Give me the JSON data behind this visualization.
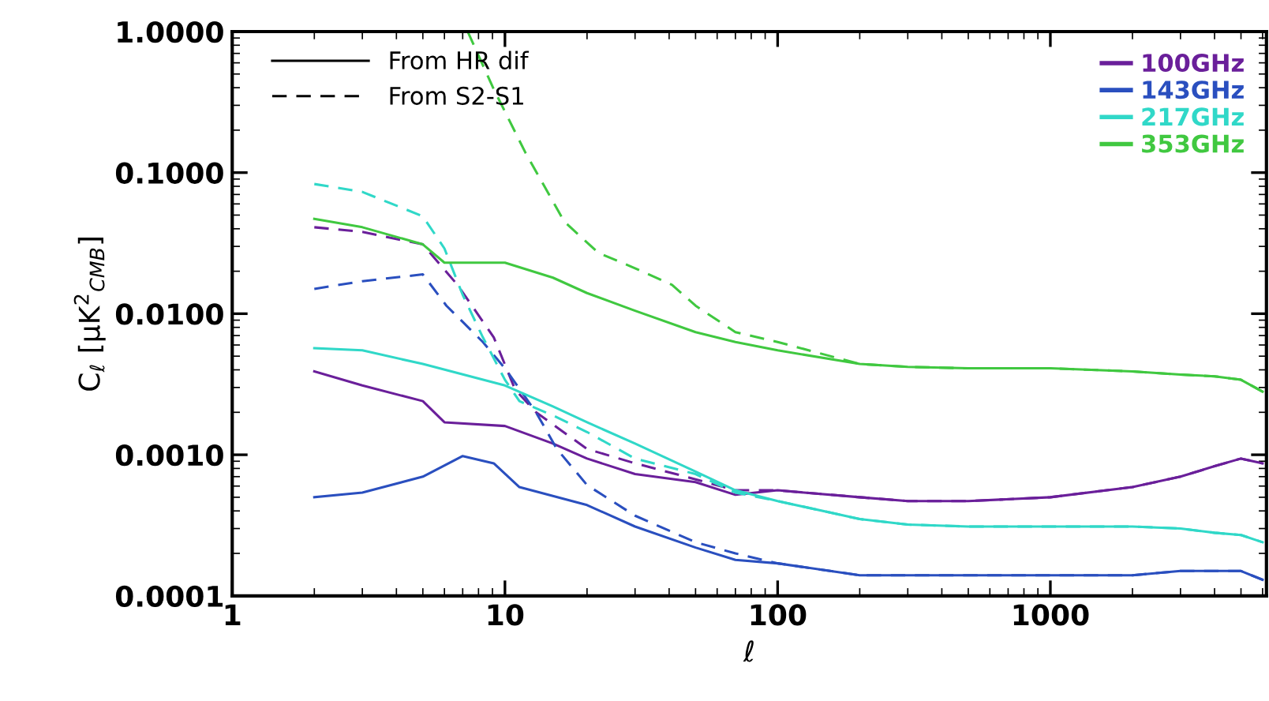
{
  "chart_data": {
    "type": "line",
    "xlabel": "ℓ",
    "ylabel": "C$_{ℓ}$ [μK$^{2}$$_{CMB}$]",
    "log": "xy",
    "xlim": [
      1,
      6200
    ],
    "ylim": [
      0.0001,
      1
    ],
    "xticks": [
      1,
      10,
      100,
      1000
    ],
    "yticks": [
      {
        "value": 0.0001,
        "label": "0.0001"
      },
      {
        "value": 0.001,
        "label": "0.0010"
      },
      {
        "value": 0.01,
        "label": "0.0100"
      },
      {
        "value": 0.1,
        "label": "0.1000"
      },
      {
        "value": 1,
        "label": "1.0000"
      }
    ],
    "annotations": [
      "From HR dif",
      "From S2-S1"
    ],
    "legend": "top right",
    "grid": false,
    "marker": "none",
    "series": [
      {
        "name": "100GHz",
        "color": "#6a1f9a",
        "line_style": "solid",
        "x": [
          2,
          3,
          5,
          6,
          10,
          15,
          20,
          30,
          50,
          70,
          100,
          200,
          300,
          500,
          1000,
          2000,
          3000,
          4000,
          5000,
          6000
        ],
        "values": [
          0.0039,
          0.0031,
          0.0024,
          0.0017,
          0.0016,
          0.0012,
          0.00094,
          0.00073,
          0.00064,
          0.00052,
          0.00056,
          0.0005,
          0.00047,
          0.00047,
          0.0005,
          0.00059,
          0.0007,
          0.00083,
          0.00094,
          0.00087
        ]
      },
      {
        "color": "#6a1f9a",
        "line_style": "dashed",
        "x": [
          2,
          3,
          5,
          6.7,
          9.1,
          10.9,
          13,
          20,
          30,
          50,
          70,
          100,
          200,
          300,
          500,
          1000,
          2000,
          3000,
          4000,
          5000,
          6000
        ],
        "values": [
          0.041,
          0.038,
          0.031,
          0.016,
          0.0068,
          0.0029,
          0.002,
          0.0011,
          0.00087,
          0.00067,
          0.00056,
          0.00056,
          0.0005,
          0.00047,
          0.00047,
          0.0005,
          0.00059,
          0.0007,
          0.00083,
          0.00094,
          0.00087
        ]
      },
      {
        "name": "143GHz",
        "color": "#2a4fbf",
        "line_style": "solid",
        "x": [
          2,
          3,
          5,
          7,
          9.1,
          11.3,
          20,
          30,
          50,
          70,
          100,
          200,
          300,
          500,
          1000,
          2000,
          3000,
          4000,
          5000,
          6000
        ],
        "values": [
          0.0005,
          0.00054,
          0.0007,
          0.00098,
          0.00087,
          0.00059,
          0.00044,
          0.00031,
          0.00022,
          0.00018,
          0.00017,
          0.00014,
          0.00014,
          0.00014,
          0.00014,
          0.00014,
          0.00015,
          0.00015,
          0.00015,
          0.00013
        ]
      },
      {
        "color": "#2a4fbf",
        "line_style": "dashed",
        "x": [
          2,
          3,
          5,
          6.1,
          8.3,
          10,
          13,
          15.5,
          20,
          30,
          50,
          70,
          100,
          200,
          300,
          500,
          1000,
          2000,
          3000,
          4000,
          5000,
          6000
        ],
        "values": [
          0.015,
          0.017,
          0.019,
          0.0114,
          0.0063,
          0.0041,
          0.002,
          0.0011,
          0.00061,
          0.00037,
          0.00024,
          0.0002,
          0.00017,
          0.00014,
          0.00014,
          0.00014,
          0.00014,
          0.00014,
          0.00015,
          0.00015,
          0.00015,
          0.00013
        ]
      },
      {
        "name": "217GHz",
        "color": "#30d8c8",
        "line_style": "solid",
        "x": [
          2,
          3,
          5,
          10,
          15,
          20,
          30,
          50,
          70,
          100,
          200,
          300,
          500,
          1000,
          2000,
          3000,
          4000,
          5000,
          6000
        ],
        "values": [
          0.0057,
          0.0055,
          0.0044,
          0.0031,
          0.0022,
          0.0017,
          0.0012,
          0.00076,
          0.00056,
          0.00047,
          0.00035,
          0.00032,
          0.00031,
          0.00031,
          0.00031,
          0.0003,
          0.00028,
          0.00027,
          0.00024
        ]
      },
      {
        "color": "#30d8c8",
        "line_style": "dashed",
        "x": [
          2,
          3,
          5,
          6,
          7,
          8.3,
          10,
          11.3,
          15,
          20,
          30,
          50,
          70,
          100,
          200,
          300,
          500,
          1000,
          2000,
          3000,
          4000,
          5000,
          6000
        ],
        "values": [
          0.083,
          0.073,
          0.049,
          0.029,
          0.0136,
          0.0068,
          0.0034,
          0.0024,
          0.0019,
          0.00145,
          0.00094,
          0.00073,
          0.00054,
          0.00047,
          0.00035,
          0.00032,
          0.00031,
          0.00031,
          0.00031,
          0.0003,
          0.00028,
          0.00027,
          0.00024
        ]
      },
      {
        "name": "353GHz",
        "color": "#40c840",
        "line_style": "solid",
        "x": [
          2,
          3,
          5,
          6,
          10,
          15,
          20,
          30,
          50,
          70,
          100,
          200,
          300,
          500,
          1000,
          2000,
          3000,
          4000,
          5000,
          6000
        ],
        "values": [
          0.047,
          0.041,
          0.031,
          0.023,
          0.023,
          0.018,
          0.014,
          0.0105,
          0.0074,
          0.0063,
          0.0055,
          0.0044,
          0.0042,
          0.0041,
          0.0041,
          0.0039,
          0.0037,
          0.0036,
          0.0034,
          0.0028
        ]
      },
      {
        "color": "#40c840",
        "line_style": "dashed",
        "x": [
          7.3,
          9.1,
          11.9,
          16.5,
          22,
          30,
          41,
          50,
          70,
          100,
          200,
          300,
          500,
          1000,
          2000,
          3000,
          4000,
          5000,
          6000
        ],
        "values": [
          1.0,
          0.39,
          0.138,
          0.045,
          0.027,
          0.021,
          0.016,
          0.0114,
          0.0074,
          0.0063,
          0.0044,
          0.0042,
          0.0041,
          0.0041,
          0.0039,
          0.0037,
          0.0036,
          0.0034,
          0.0028
        ]
      }
    ]
  }
}
